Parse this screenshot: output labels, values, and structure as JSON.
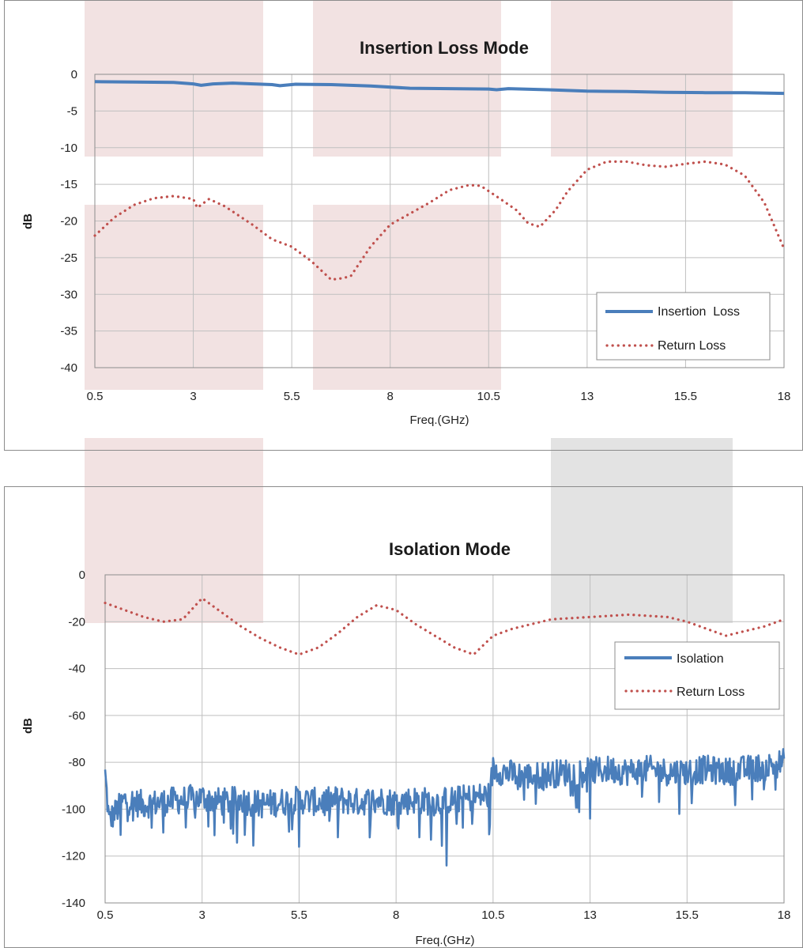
{
  "colors": {
    "insertion_line": "#4a7ebb",
    "return_loss_dots": "#c0504d",
    "grid": "#bfbfbf",
    "pink_band": "#f2e2e2",
    "gray_band": "#e3e3e3"
  },
  "chart_data": [
    {
      "type": "line",
      "title": "Insertion Loss Mode",
      "xlabel": "Freq.(GHz)",
      "ylabel": "dB",
      "xlim": [
        0.5,
        18
      ],
      "ylim": [
        -40,
        0
      ],
      "x_ticks": [
        "0.5",
        "3",
        "5.5",
        "8",
        "10.5",
        "13",
        "15.5",
        "18"
      ],
      "y_ticks": [
        "0",
        "-5",
        "-10",
        "-15",
        "-20",
        "-25",
        "-30",
        "-35",
        "-40"
      ],
      "grid": true,
      "legend_position": "bottom-right",
      "series": [
        {
          "name": "Insertion  Loss",
          "style": "solid",
          "points": [
            [
              0.5,
              -1.0
            ],
            [
              1.5,
              -1.05
            ],
            [
              2.5,
              -1.1
            ],
            [
              3.0,
              -1.3
            ],
            [
              3.2,
              -1.5
            ],
            [
              3.5,
              -1.3
            ],
            [
              4.0,
              -1.2
            ],
            [
              5.0,
              -1.4
            ],
            [
              5.2,
              -1.55
            ],
            [
              5.6,
              -1.35
            ],
            [
              6.5,
              -1.4
            ],
            [
              7.5,
              -1.6
            ],
            [
              8.5,
              -1.9
            ],
            [
              9.5,
              -1.95
            ],
            [
              10.5,
              -2.0
            ],
            [
              10.7,
              -2.1
            ],
            [
              11.0,
              -1.95
            ],
            [
              12.0,
              -2.1
            ],
            [
              13.0,
              -2.3
            ],
            [
              14.0,
              -2.35
            ],
            [
              15.0,
              -2.45
            ],
            [
              16.0,
              -2.5
            ],
            [
              17.0,
              -2.5
            ],
            [
              18.0,
              -2.6
            ]
          ]
        },
        {
          "name": "Return Loss",
          "style": "dotted",
          "points": [
            [
              0.5,
              -22.0
            ],
            [
              1.0,
              -19.5
            ],
            [
              1.5,
              -17.8
            ],
            [
              2.0,
              -16.9
            ],
            [
              2.5,
              -16.6
            ],
            [
              3.0,
              -17.0
            ],
            [
              3.1,
              -18.2
            ],
            [
              3.4,
              -17.0
            ],
            [
              3.8,
              -18.0
            ],
            [
              4.5,
              -20.5
            ],
            [
              5.0,
              -22.5
            ],
            [
              5.5,
              -23.5
            ],
            [
              6.0,
              -25.5
            ],
            [
              6.5,
              -28.0
            ],
            [
              6.8,
              -27.8
            ],
            [
              7.0,
              -27.5
            ],
            [
              7.5,
              -23.5
            ],
            [
              8.0,
              -20.5
            ],
            [
              9.0,
              -17.5
            ],
            [
              9.5,
              -15.8
            ],
            [
              10.0,
              -15.1
            ],
            [
              10.3,
              -15.2
            ],
            [
              10.8,
              -17.0
            ],
            [
              11.2,
              -18.5
            ],
            [
              11.5,
              -20.3
            ],
            [
              11.8,
              -20.8
            ],
            [
              12.2,
              -18.5
            ],
            [
              12.5,
              -16.0
            ],
            [
              13.0,
              -13.0
            ],
            [
              13.5,
              -11.9
            ],
            [
              14.0,
              -11.9
            ],
            [
              14.5,
              -12.4
            ],
            [
              15.0,
              -12.6
            ],
            [
              15.5,
              -12.2
            ],
            [
              16.0,
              -11.9
            ],
            [
              16.5,
              -12.3
            ],
            [
              17.0,
              -13.8
            ],
            [
              17.5,
              -17.5
            ],
            [
              18.0,
              -23.8
            ]
          ]
        }
      ]
    },
    {
      "type": "line",
      "title": "Isolation Mode",
      "xlabel": "Freq.(GHz)",
      "ylabel": "dB",
      "xlim": [
        0.5,
        18
      ],
      "ylim": [
        -140,
        0
      ],
      "x_ticks": [
        "0.5",
        "3",
        "5.5",
        "8",
        "10.5",
        "13",
        "15.5",
        "18"
      ],
      "y_ticks": [
        "0",
        "-20",
        "-40",
        "-60",
        "-80",
        "-100",
        "-120",
        "-140"
      ],
      "grid": true,
      "legend_position": "bottom-right",
      "series": [
        {
          "name": "Isolation",
          "style": "solid-noisy",
          "points": [
            [
              0.5,
              -85
            ],
            [
              0.6,
              -105
            ],
            [
              1.0,
              -96
            ],
            [
              1.5,
              -98
            ],
            [
              2.0,
              -97
            ],
            [
              2.5,
              -96
            ],
            [
              3.0,
              -95
            ],
            [
              3.5,
              -97
            ],
            [
              4.0,
              -96
            ],
            [
              4.5,
              -98
            ],
            [
              5.0,
              -97
            ],
            [
              5.5,
              -96
            ],
            [
              6.0,
              -97
            ],
            [
              6.5,
              -96
            ],
            [
              7.0,
              -97
            ],
            [
              7.5,
              -96
            ],
            [
              8.0,
              -97
            ],
            [
              8.5,
              -96
            ],
            [
              9.0,
              -97
            ],
            [
              9.5,
              -96
            ],
            [
              10.0,
              -95
            ],
            [
              10.4,
              -94
            ],
            [
              10.5,
              -83
            ],
            [
              11.0,
              -85
            ],
            [
              11.5,
              -86
            ],
            [
              12.0,
              -85
            ],
            [
              12.5,
              -84
            ],
            [
              13.0,
              -84
            ],
            [
              13.5,
              -83
            ],
            [
              14.0,
              -84
            ],
            [
              14.5,
              -83
            ],
            [
              15.0,
              -84
            ],
            [
              15.5,
              -84
            ],
            [
              16.0,
              -83
            ],
            [
              16.5,
              -84
            ],
            [
              17.0,
              -83
            ],
            [
              17.5,
              -82
            ],
            [
              18.0,
              -80
            ]
          ],
          "noise_amplitude_db": 6,
          "notable_dips": [
            [
              0.9,
              -111
            ],
            [
              2.0,
              -110
            ],
            [
              4.1,
              -111
            ],
            [
              5.5,
              -116
            ],
            [
              6.5,
              -112
            ],
            [
              8.6,
              -112
            ],
            [
              9.3,
              -124
            ],
            [
              13.0,
              -104
            ],
            [
              11.3,
              -96
            ],
            [
              15.3,
              -102
            ]
          ]
        },
        {
          "name": "Return Loss",
          "style": "dotted",
          "points": [
            [
              0.5,
              -12
            ],
            [
              1.0,
              -15
            ],
            [
              1.5,
              -18
            ],
            [
              2.0,
              -20
            ],
            [
              2.5,
              -19
            ],
            [
              3.0,
              -10
            ],
            [
              3.5,
              -16
            ],
            [
              4.0,
              -22
            ],
            [
              4.5,
              -27
            ],
            [
              5.0,
              -31
            ],
            [
              5.5,
              -34
            ],
            [
              6.0,
              -31
            ],
            [
              6.5,
              -25
            ],
            [
              7.0,
              -18
            ],
            [
              7.5,
              -13
            ],
            [
              8.0,
              -15
            ],
            [
              8.5,
              -21
            ],
            [
              9.0,
              -26
            ],
            [
              9.5,
              -31
            ],
            [
              10.0,
              -34
            ],
            [
              10.5,
              -26
            ],
            [
              11.0,
              -23
            ],
            [
              11.5,
              -21
            ],
            [
              12.0,
              -19
            ],
            [
              13.0,
              -18
            ],
            [
              14.0,
              -17
            ],
            [
              15.0,
              -18
            ],
            [
              15.5,
              -20
            ],
            [
              16.0,
              -23
            ],
            [
              16.5,
              -26
            ],
            [
              17.0,
              -24
            ],
            [
              17.5,
              -22
            ],
            [
              18.0,
              -19
            ]
          ]
        }
      ]
    }
  ]
}
